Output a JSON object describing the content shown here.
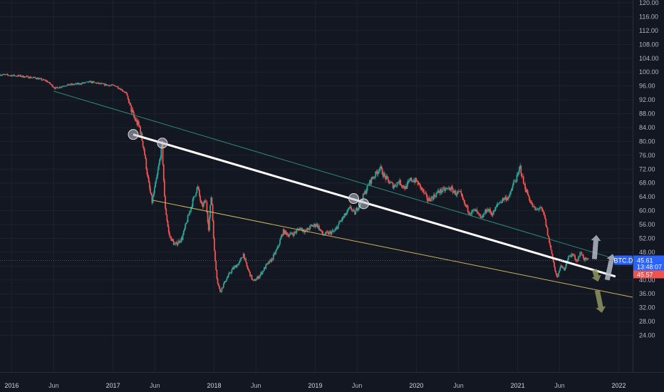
{
  "chart_data": {
    "type": "candlestick",
    "symbol": "BTC.D",
    "y_axis": {
      "ylim": [
        20,
        122
      ],
      "ticks": [
        "120.00",
        "116.00",
        "112.00",
        "108.00",
        "104.00",
        "100.00",
        "96.00",
        "92.00",
        "88.00",
        "84.00",
        "80.00",
        "76.00",
        "72.00",
        "68.00",
        "64.00",
        "60.00",
        "56.00",
        "52.00",
        "48.00",
        "44.00",
        "40.00",
        "36.00",
        "32.00",
        "28.00",
        "24.00"
      ],
      "tick_values": [
        120,
        116,
        112,
        108,
        104,
        100,
        96,
        92,
        88,
        84,
        80,
        76,
        72,
        68,
        64,
        60,
        56,
        52,
        48,
        44,
        40,
        36,
        32,
        28,
        24
      ]
    },
    "x_axis": {
      "xlim": [
        "2015-11-20",
        "2022-02-20"
      ],
      "ticks": [
        {
          "label": "2016",
          "date": "2016-01-01",
          "year": true
        },
        {
          "label": "Jun",
          "date": "2016-06-01",
          "year": false
        },
        {
          "label": "2017",
          "date": "2017-01-01",
          "year": true
        },
        {
          "label": "Jun",
          "date": "2017-06-01",
          "year": false
        },
        {
          "label": "2018",
          "date": "2018-01-01",
          "year": true
        },
        {
          "label": "Jun",
          "date": "2018-06-01",
          "year": false
        },
        {
          "label": "2019",
          "date": "2019-01-01",
          "year": true
        },
        {
          "label": "Jun",
          "date": "2019-06-01",
          "year": false
        },
        {
          "label": "2020",
          "date": "2020-01-01",
          "year": true
        },
        {
          "label": "Jun",
          "date": "2020-06-01",
          "year": false
        },
        {
          "label": "2021",
          "date": "2021-01-01",
          "year": true
        },
        {
          "label": "Jun",
          "date": "2021-06-01",
          "year": false
        },
        {
          "label": "2022",
          "date": "2022-01-01",
          "year": true
        }
      ]
    },
    "price_path": [
      [
        "2015-11-20",
        99.3
      ],
      [
        "2016-02-01",
        98.9
      ],
      [
        "2016-04-01",
        98.3
      ],
      [
        "2016-05-10",
        97.4
      ],
      [
        "2016-06-10",
        95.3
      ],
      [
        "2016-07-15",
        96.2
      ],
      [
        "2016-09-01",
        96.6
      ],
      [
        "2016-10-15",
        97.2
      ],
      [
        "2016-12-01",
        96.4
      ],
      [
        "2017-01-15",
        96.0
      ],
      [
        "2017-02-20",
        94.0
      ],
      [
        "2017-03-05",
        90.5
      ],
      [
        "2017-03-20",
        87.0
      ],
      [
        "2017-04-10",
        84.0
      ],
      [
        "2017-04-25",
        78.0
      ],
      [
        "2017-05-12",
        68.0
      ],
      [
        "2017-05-25",
        62.5
      ],
      [
        "2017-06-12",
        70.0
      ],
      [
        "2017-06-20",
        74.0
      ],
      [
        "2017-06-30",
        79.0
      ],
      [
        "2017-07-10",
        62.0
      ],
      [
        "2017-07-25",
        53.0
      ],
      [
        "2017-08-15",
        50.0
      ],
      [
        "2017-09-10",
        52.0
      ],
      [
        "2017-10-01",
        58.0
      ],
      [
        "2017-10-20",
        63.0
      ],
      [
        "2017-11-05",
        67.0
      ],
      [
        "2017-11-20",
        61.0
      ],
      [
        "2017-12-05",
        63.0
      ],
      [
        "2017-12-15",
        55.0
      ],
      [
        "2017-12-25",
        65.0
      ],
      [
        "2018-01-05",
        48.0
      ],
      [
        "2018-01-15",
        40.0
      ],
      [
        "2018-01-25",
        36.5
      ],
      [
        "2018-02-15",
        40.0
      ],
      [
        "2018-03-10",
        43.0
      ],
      [
        "2018-04-05",
        45.0
      ],
      [
        "2018-04-20",
        47.5
      ],
      [
        "2018-05-01",
        44.0
      ],
      [
        "2018-05-25",
        39.5
      ],
      [
        "2018-06-15",
        41.0
      ],
      [
        "2018-07-10",
        44.0
      ],
      [
        "2018-08-01",
        46.0
      ],
      [
        "2018-08-20",
        49.0
      ],
      [
        "2018-09-10",
        54.0
      ],
      [
        "2018-10-01",
        53.0
      ],
      [
        "2018-10-20",
        53.5
      ],
      [
        "2018-11-10",
        55.0
      ],
      [
        "2018-12-01",
        54.0
      ],
      [
        "2018-12-20",
        55.5
      ],
      [
        "2019-01-10",
        56.0
      ],
      [
        "2019-02-01",
        53.0
      ],
      [
        "2019-02-20",
        53.5
      ],
      [
        "2019-03-15",
        54.0
      ],
      [
        "2019-04-05",
        57.0
      ],
      [
        "2019-04-25",
        59.0
      ],
      [
        "2019-05-12",
        61.0
      ],
      [
        "2019-05-25",
        59.0
      ],
      [
        "2019-06-10",
        61.5
      ],
      [
        "2019-06-25",
        64.0
      ],
      [
        "2019-07-10",
        66.5
      ],
      [
        "2019-07-25",
        69.0
      ],
      [
        "2019-08-10",
        70.5
      ],
      [
        "2019-08-25",
        72.5
      ],
      [
        "2019-09-10",
        70.0
      ],
      [
        "2019-09-25",
        68.5
      ],
      [
        "2019-10-15",
        67.0
      ],
      [
        "2019-11-01",
        68.5
      ],
      [
        "2019-11-25",
        66.5
      ],
      [
        "2019-12-15",
        69.0
      ],
      [
        "2020-01-05",
        68.5
      ],
      [
        "2020-01-25",
        66.0
      ],
      [
        "2020-02-15",
        63.0
      ],
      [
        "2020-03-05",
        64.0
      ],
      [
        "2020-03-25",
        65.5
      ],
      [
        "2020-04-15",
        66.0
      ],
      [
        "2020-05-05",
        66.5
      ],
      [
        "2020-05-25",
        65.0
      ],
      [
        "2020-06-10",
        65.0
      ],
      [
        "2020-06-25",
        62.0
      ],
      [
        "2020-07-15",
        59.5
      ],
      [
        "2020-08-05",
        60.0
      ],
      [
        "2020-08-25",
        57.5
      ],
      [
        "2020-09-15",
        60.5
      ],
      [
        "2020-10-05",
        59.0
      ],
      [
        "2020-10-25",
        62.0
      ],
      [
        "2020-11-15",
        63.5
      ],
      [
        "2020-12-05",
        64.0
      ],
      [
        "2020-12-20",
        68.0
      ],
      [
        "2021-01-05",
        70.0
      ],
      [
        "2021-01-12",
        73.0
      ],
      [
        "2021-01-25",
        68.0
      ],
      [
        "2021-02-10",
        64.5
      ],
      [
        "2021-02-25",
        61.5
      ],
      [
        "2021-03-10",
        60.0
      ],
      [
        "2021-03-25",
        61.0
      ],
      [
        "2021-04-10",
        58.5
      ],
      [
        "2021-04-25",
        52.0
      ],
      [
        "2021-05-10",
        46.5
      ],
      [
        "2021-05-20",
        42.0
      ],
      [
        "2021-05-28",
        40.5
      ],
      [
        "2021-06-05",
        44.0
      ],
      [
        "2021-06-20",
        43.0
      ],
      [
        "2021-07-05",
        46.5
      ],
      [
        "2021-07-20",
        47.5
      ],
      [
        "2021-08-05",
        45.5
      ],
      [
        "2021-08-20",
        48.0
      ],
      [
        "2021-09-01",
        46.0
      ],
      [
        "2021-09-15",
        45.61
      ]
    ],
    "annotations": {
      "white_trendline": [
        [
          "2017-03-15",
          82.0
        ],
        [
          "2021-12-20",
          41.0
        ]
      ],
      "green_channel_top": [
        [
          "2016-06-01",
          94.5
        ],
        [
          "2021-12-31",
          45.8
        ]
      ],
      "yellow_channel_bottom": [
        [
          "2017-05-25",
          63.0
        ],
        [
          "2022-02-20",
          35.0
        ]
      ],
      "circles": [
        {
          "date": "2017-03-15",
          "value": 82.0
        },
        {
          "date": "2017-06-28",
          "value": 79.5
        },
        {
          "date": "2019-05-20",
          "value": 63.5
        },
        {
          "date": "2019-06-25",
          "value": 62.0
        }
      ],
      "arrows": [
        {
          "color": "#b4b8c8",
          "from": [
            "2021-10-05",
            46.0
          ],
          "to": [
            "2021-10-12",
            53.0
          ]
        },
        {
          "color": "#b4b8c8",
          "from": [
            "2021-11-20",
            40.0
          ],
          "to": [
            "2021-12-10",
            47.5
          ]
        },
        {
          "color": "#8f9860",
          "from": [
            "2021-10-05",
            43.0
          ],
          "to": [
            "2021-10-18",
            39.5
          ]
        },
        {
          "color": "#8f9860",
          "from": [
            "2021-10-15",
            37.0
          ],
          "to": [
            "2021-11-01",
            30.5
          ]
        }
      ]
    },
    "last_price": {
      "label": "BTC.D",
      "price": "45.61",
      "countdown": "13:48:07",
      "prev": "45.57"
    },
    "colors": {
      "background": "#131722",
      "up": "#26a69a",
      "down": "#ef5350",
      "grid": "#1e222d",
      "trendline": "#ffffff",
      "channel_top": "#2a8a78",
      "channel_bottom": "#c9b458",
      "price_tag": "#2962ff",
      "prev_tag": "#ef5350",
      "symbol_tag": "#2962ff"
    }
  }
}
